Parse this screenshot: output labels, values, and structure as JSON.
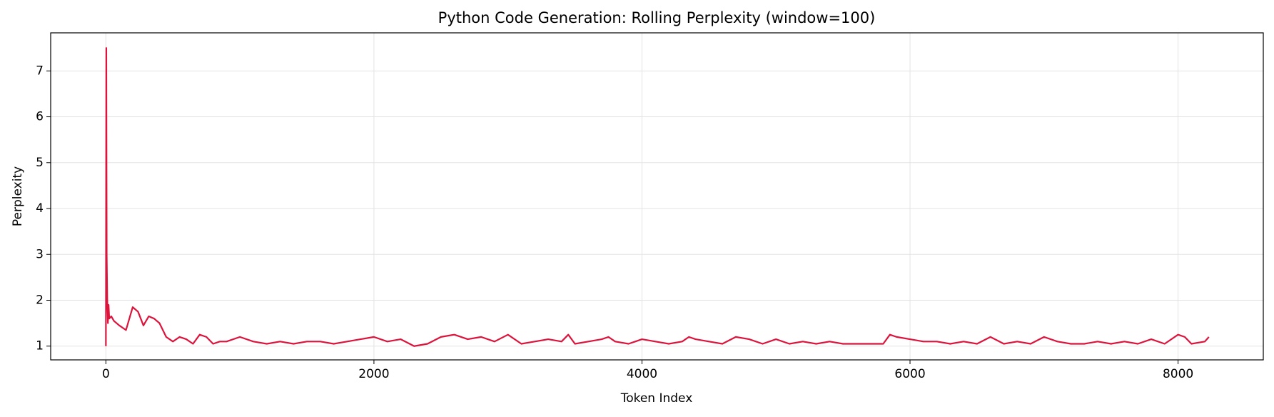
{
  "chart_data": {
    "type": "line",
    "title": "Python Code Generation: Rolling Perplexity (window=100)",
    "x_label": "Token Index",
    "y_label": "Perplexity",
    "x": [
      0,
      3,
      6,
      10,
      15,
      20,
      25,
      40,
      60,
      100,
      150,
      200,
      240,
      280,
      320,
      360,
      400,
      450,
      500,
      550,
      600,
      650,
      700,
      750,
      800,
      850,
      900,
      1000,
      1100,
      1200,
      1300,
      1400,
      1500,
      1600,
      1700,
      1800,
      1900,
      2000,
      2100,
      2200,
      2300,
      2400,
      2500,
      2600,
      2700,
      2800,
      2900,
      3000,
      3100,
      3200,
      3300,
      3400,
      3450,
      3500,
      3600,
      3700,
      3750,
      3800,
      3900,
      4000,
      4100,
      4200,
      4300,
      4350,
      4400,
      4500,
      4600,
      4700,
      4800,
      4900,
      5000,
      5100,
      5200,
      5300,
      5400,
      5500,
      5600,
      5700,
      5800,
      5850,
      5900,
      6000,
      6100,
      6200,
      6300,
      6400,
      6500,
      6600,
      6700,
      6800,
      6900,
      7000,
      7100,
      7200,
      7300,
      7400,
      7500,
      7600,
      7700,
      7800,
      7900,
      8000,
      8050,
      8100,
      8200,
      8230
    ],
    "series": [
      {
        "color": "#dc143c",
        "values": [
          1.0,
          7.5,
          3.0,
          2.05,
          1.5,
          1.9,
          1.6,
          1.65,
          1.55,
          1.45,
          1.35,
          1.85,
          1.75,
          1.45,
          1.65,
          1.6,
          1.5,
          1.2,
          1.1,
          1.2,
          1.15,
          1.05,
          1.25,
          1.2,
          1.05,
          1.1,
          1.1,
          1.2,
          1.1,
          1.05,
          1.1,
          1.05,
          1.1,
          1.1,
          1.05,
          1.1,
          1.15,
          1.2,
          1.1,
          1.15,
          1.0,
          1.05,
          1.2,
          1.25,
          1.15,
          1.2,
          1.1,
          1.25,
          1.05,
          1.1,
          1.15,
          1.1,
          1.25,
          1.05,
          1.1,
          1.15,
          1.2,
          1.1,
          1.05,
          1.15,
          1.1,
          1.05,
          1.1,
          1.2,
          1.15,
          1.1,
          1.05,
          1.2,
          1.15,
          1.05,
          1.15,
          1.05,
          1.1,
          1.05,
          1.1,
          1.05,
          1.05,
          1.05,
          1.05,
          1.25,
          1.2,
          1.15,
          1.1,
          1.1,
          1.05,
          1.1,
          1.05,
          1.2,
          1.05,
          1.1,
          1.05,
          1.2,
          1.1,
          1.05,
          1.05,
          1.1,
          1.05,
          1.1,
          1.05,
          1.15,
          1.05,
          1.25,
          1.2,
          1.05,
          1.1,
          1.2
        ]
      }
    ],
    "xlim": [
      -412,
      8636
    ],
    "ylim": [
      0.7,
      7.83
    ],
    "xticks": [
      0,
      2000,
      4000,
      6000,
      8000
    ],
    "yticks": [
      1,
      2,
      3,
      4,
      5,
      6,
      7
    ],
    "grid": true
  }
}
